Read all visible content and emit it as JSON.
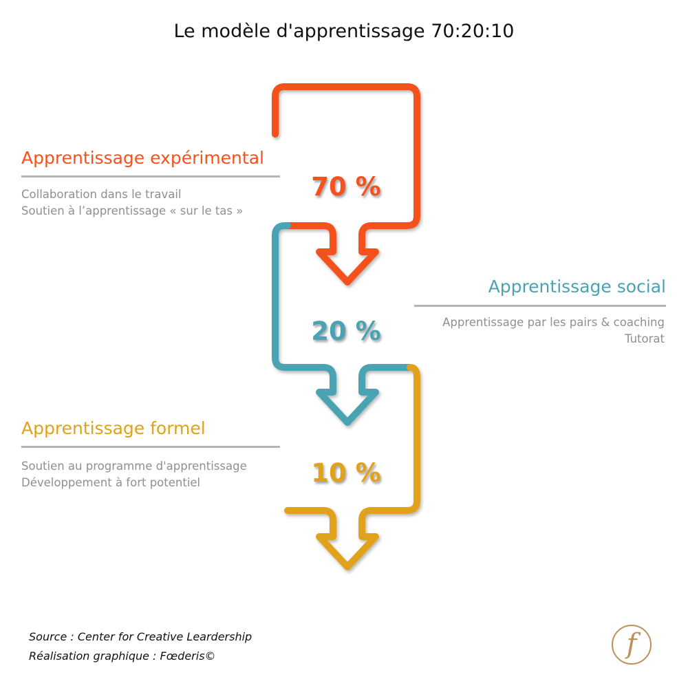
{
  "title": "Le modèle d'apprentissage 70:20:10",
  "colors": {
    "orange": "#f4511e",
    "teal": "#4aa3b3",
    "gold": "#e0a21a",
    "grey_text": "#8f8f8f",
    "logo": "#b8925a"
  },
  "sections": [
    {
      "title": "Apprentissage expérimental",
      "percent": "70 %",
      "lines": [
        "Collaboration dans le travail",
        "Soutien à l’apprentissage « sur le tas »"
      ]
    },
    {
      "title": "Apprentissage social",
      "percent": "20 %",
      "lines": [
        "Apprentissage par les pairs & coaching",
        "Tutorat"
      ]
    },
    {
      "title": "Apprentissage formel",
      "percent": "10 %",
      "lines": [
        "Soutien au programme d'apprentissage",
        "Développement à fort potentiel"
      ]
    }
  ],
  "footer": {
    "source": "Source : Center for Creative Leardership",
    "credit": "Réalisation graphique : Fœderis©"
  },
  "logo_letter": "f"
}
